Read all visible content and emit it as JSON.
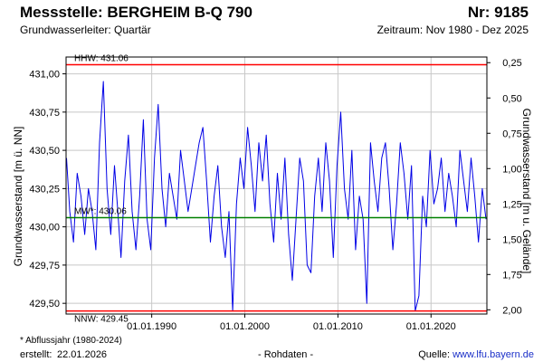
{
  "header": {
    "station": "Messstelle: BERGHEIM B-Q 790",
    "number": "Nr: 9185",
    "aquifer": "Grundwasserleiter: Quartär",
    "period": "Zeitraum: Nov 1980 - Dez 2025"
  },
  "footer": {
    "footnote": "* Abflussjahr (1980-2024)",
    "created_label": "erstellt:",
    "created_date": "22.01.2026",
    "rawdata": "- Rohdaten -",
    "source_label": "Quelle:",
    "source_url": "www.lfu.bayern.de"
  },
  "colors": {
    "series": "#0000e6",
    "hhw": "#ff0000",
    "nnw": "#ff0000",
    "mw": "#008000"
  },
  "chart_data": {
    "type": "line",
    "ylabel": "Grundwasserstand [m ü. NN]",
    "y2label": "Grundwasserstand [m u. Gelände]",
    "ylim": [
      429.43,
      431.11
    ],
    "y2lim": [
      0.21,
      2.03
    ],
    "y_ticks": [
      "431,00",
      "430,75",
      "430,50",
      "430,25",
      "430,00",
      "429,75",
      "429,50"
    ],
    "y_tick_values": [
      431.0,
      430.75,
      430.5,
      430.25,
      430.0,
      429.75,
      429.5
    ],
    "y2_ticks": [
      "0,25",
      "0,50",
      "0,75",
      "1,00",
      "1,25",
      "1,50",
      "1,75",
      "2,00"
    ],
    "y2_tick_values": [
      0.25,
      0.5,
      0.75,
      1.0,
      1.25,
      1.5,
      1.75,
      2.0
    ],
    "x_range": [
      "1980-11-01",
      "2025-12-31"
    ],
    "x_ticks": [
      "01.01.1990",
      "01.01.2000",
      "01.01.2010",
      "01.01.2020"
    ],
    "x_tick_years": [
      1990,
      2000,
      2010,
      2020
    ],
    "grid": true,
    "reference_lines": [
      {
        "label": "HHW: 431.06",
        "value": 431.06,
        "color": "#ff0000"
      },
      {
        "label": "MW*: 430.06",
        "value": 430.06,
        "color": "#008000"
      },
      {
        "label": "NNW: 429.45",
        "value": 429.45,
        "color": "#ff0000"
      }
    ],
    "series": [
      {
        "x": [
          1980.85,
          1981.2,
          1981.6,
          1982.0,
          1982.4,
          1982.8,
          1983.2,
          1983.6,
          1984.0,
          1984.4,
          1984.8,
          1985.2,
          1985.6,
          1986.0,
          1986.3,
          1986.7,
          1987.1,
          1987.5,
          1987.9,
          1988.3,
          1988.7,
          1989.1,
          1989.5,
          1989.9,
          1990.3,
          1990.7,
          1991.1,
          1991.5,
          1991.9,
          1992.3,
          1992.7,
          1993.1,
          1993.5,
          1993.9,
          1994.3,
          1994.7,
          1995.1,
          1995.5,
          1995.9,
          1996.3,
          1996.7,
          1997.1,
          1997.5,
          1997.9,
          1998.3,
          1998.7,
          1999.1,
          1999.5,
          1999.9,
          2000.3,
          2000.7,
          2001.1,
          2001.5,
          2001.9,
          2002.3,
          2002.7,
          2003.1,
          2003.5,
          2003.9,
          2004.3,
          2004.7,
          2005.1,
          2005.5,
          2005.9,
          2006.3,
          2006.7,
          2007.1,
          2007.5,
          2007.9,
          2008.3,
          2008.7,
          2009.1,
          2009.5,
          2009.9,
          2010.3,
          2010.7,
          2011.1,
          2011.5,
          2011.9,
          2012.3,
          2012.7,
          2013.1,
          2013.5,
          2013.9,
          2014.3,
          2014.7,
          2015.1,
          2015.5,
          2015.9,
          2016.3,
          2016.7,
          2017.1,
          2017.5,
          2017.9,
          2018.3,
          2018.7,
          2019.1,
          2019.5,
          2019.9,
          2020.3,
          2020.7,
          2021.1,
          2021.5,
          2021.9,
          2022.3,
          2022.7,
          2023.1,
          2023.5,
          2023.9,
          2024.3,
          2024.7,
          2025.1,
          2025.5,
          2025.9
        ],
        "y": [
          430.45,
          430.1,
          429.9,
          430.35,
          430.2,
          429.95,
          430.25,
          430.1,
          429.85,
          430.55,
          430.95,
          430.25,
          429.95,
          430.4,
          430.15,
          429.8,
          430.3,
          430.6,
          430.1,
          429.85,
          430.2,
          430.7,
          430.05,
          429.85,
          430.45,
          430.8,
          430.25,
          430.0,
          430.35,
          430.2,
          430.05,
          430.5,
          430.3,
          430.1,
          430.25,
          430.4,
          430.55,
          430.65,
          430.3,
          429.9,
          430.2,
          430.4,
          430.0,
          429.8,
          430.1,
          429.45,
          430.15,
          430.45,
          430.25,
          430.65,
          430.4,
          430.1,
          430.55,
          430.3,
          430.6,
          430.15,
          429.9,
          430.35,
          430.05,
          430.45,
          429.95,
          429.65,
          430.05,
          430.45,
          430.3,
          429.75,
          429.7,
          430.2,
          430.45,
          430.1,
          430.55,
          430.3,
          429.8,
          430.4,
          430.75,
          430.25,
          430.05,
          430.5,
          429.85,
          430.2,
          430.05,
          429.5,
          430.55,
          430.3,
          430.1,
          430.45,
          430.55,
          430.25,
          429.85,
          430.15,
          430.55,
          430.35,
          430.05,
          430.4,
          429.45,
          429.55,
          430.2,
          430.0,
          430.5,
          430.15,
          430.25,
          430.45,
          430.1,
          430.35,
          430.2,
          430.0,
          430.5,
          430.3,
          430.1,
          430.45,
          430.2,
          429.9,
          430.25,
          430.05
        ]
      }
    ]
  }
}
